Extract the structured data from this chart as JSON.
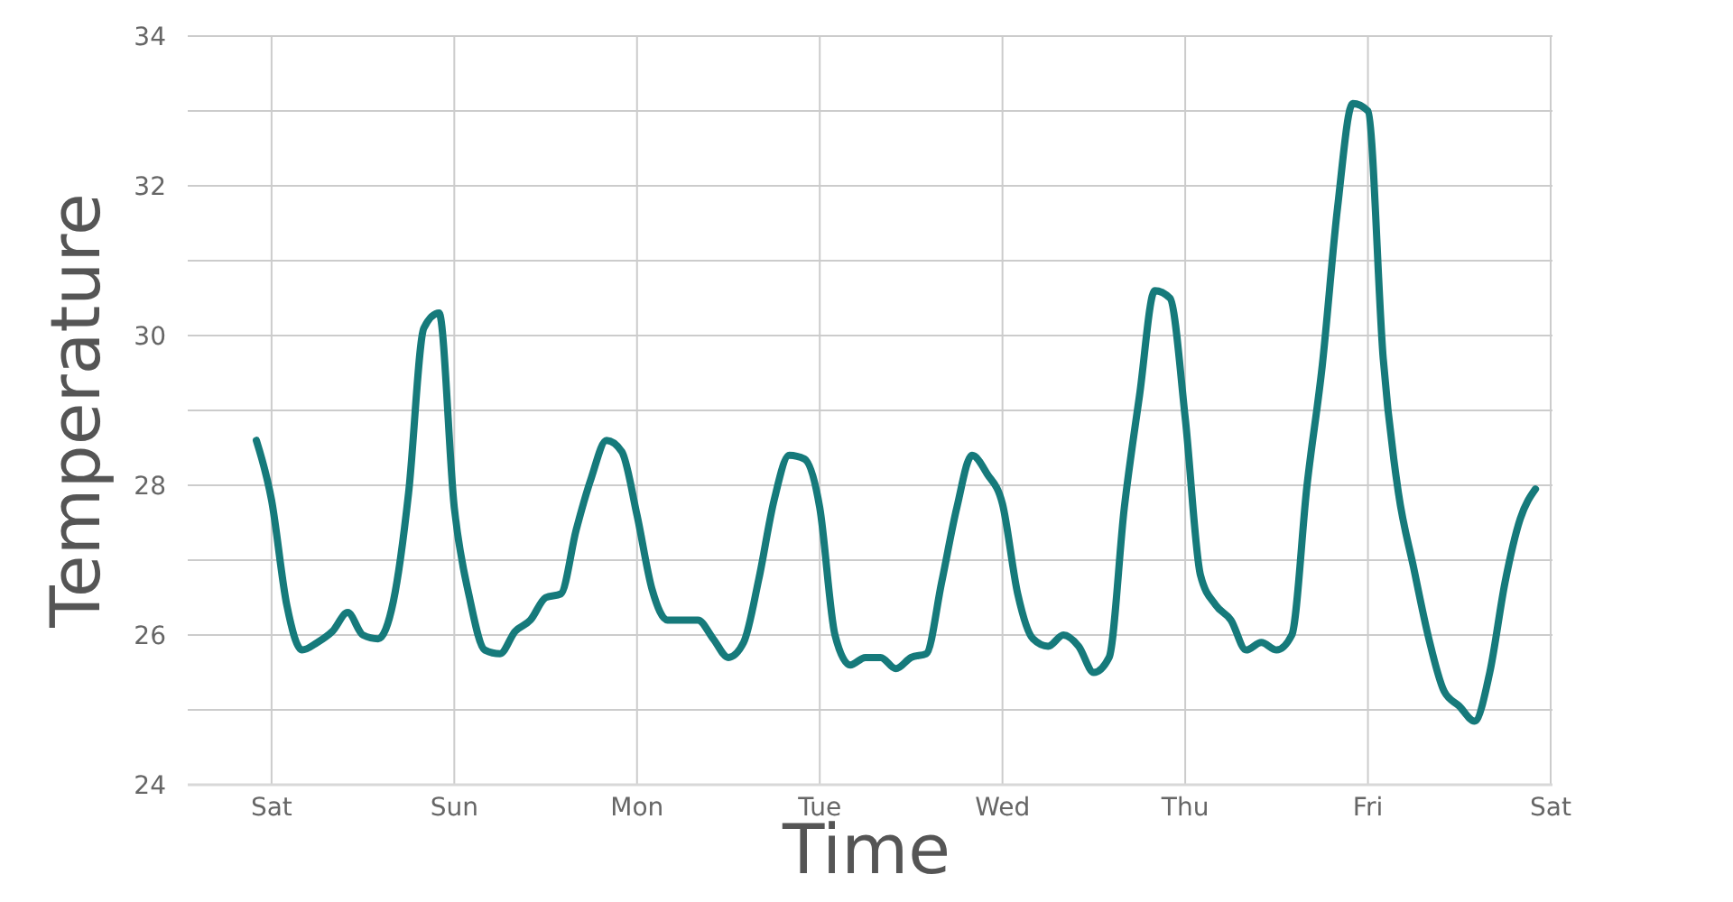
{
  "chart_data": {
    "type": "line",
    "xlabel": "Time",
    "ylabel": "Temperature",
    "categories": [
      null,
      "Sat",
      null,
      null,
      null,
      null,
      null,
      null,
      null,
      null,
      null,
      null,
      null,
      "Sun",
      null,
      null,
      null,
      null,
      null,
      null,
      null,
      null,
      null,
      null,
      null,
      "Mon",
      null,
      null,
      null,
      null,
      null,
      null,
      null,
      null,
      null,
      null,
      null,
      "Tue",
      null,
      null,
      null,
      null,
      null,
      null,
      null,
      null,
      null,
      null,
      null,
      "Wed",
      null,
      null,
      null,
      null,
      null,
      null,
      null,
      null,
      null,
      null,
      null,
      "Thu",
      null,
      null,
      null,
      null,
      null,
      null,
      null,
      null,
      null,
      null,
      null,
      "Fri",
      null,
      null,
      null,
      null,
      null,
      null,
      null,
      null,
      null,
      null,
      null,
      "Sat"
    ],
    "series": [
      {
        "color": "#167a7b",
        "values": [
          28.6,
          27.8,
          26.4,
          25.8,
          25.9,
          26.05,
          26.3,
          26.0,
          25.95,
          26.45,
          27.9,
          30.1,
          30.3,
          27.7,
          26.5,
          25.8,
          25.75,
          26.05,
          26.2,
          26.5,
          26.55,
          27.4,
          28.1,
          28.6,
          28.45,
          27.6,
          26.6,
          26.2,
          26.2,
          26.2,
          25.95,
          25.7,
          25.9,
          26.75,
          27.8,
          28.4,
          28.35,
          27.7,
          26.0,
          25.6,
          25.7,
          25.7,
          25.55,
          25.7,
          25.75,
          26.7,
          27.7,
          28.4,
          28.15,
          27.75,
          26.55,
          25.95,
          25.85,
          26.0,
          25.85,
          25.5,
          25.7,
          27.7,
          29.2,
          30.6,
          30.5,
          28.9,
          26.8,
          26.4,
          26.2,
          25.8,
          25.9,
          25.8,
          26.0,
          28.0,
          29.6,
          31.7,
          33.1,
          33.0,
          29.7,
          27.9,
          26.9,
          25.95,
          25.25,
          25.05,
          24.85,
          25.5,
          26.7,
          27.55,
          27.95,
          null
        ]
      }
    ],
    "ylim": [
      24,
      34
    ],
    "yticks": [
      24,
      {
        "value": 25,
        "label": null
      },
      26,
      {
        "value": 27,
        "label": null
      },
      28,
      {
        "value": 29,
        "label": null
      },
      30,
      {
        "value": 31,
        "label": null
      },
      32,
      {
        "value": 33,
        "label": null
      },
      34
    ],
    "grid": true,
    "marker": "none",
    "line_style": "solid"
  }
}
